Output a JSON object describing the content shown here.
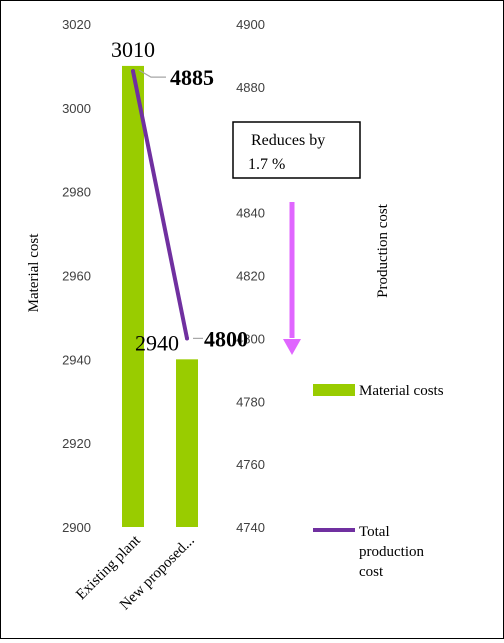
{
  "chart_data": {
    "type": "bar",
    "categories": [
      "Existing plant",
      "New proposed..."
    ],
    "series": [
      {
        "name": "Material costs",
        "type": "bar",
        "axis": "left",
        "values": [
          3010,
          2940
        ],
        "color": "#99cc00",
        "labels": [
          "3010",
          "2940"
        ]
      },
      {
        "name": "Total production cost",
        "type": "line",
        "axis": "right",
        "values": [
          4885,
          4800
        ],
        "color": "#7030a0",
        "labels": [
          "4885",
          "4800"
        ]
      }
    ],
    "ylabel": "Material cost",
    "y2label": "Production cost",
    "ylim": [
      2900,
      3020
    ],
    "y2lim": [
      4740,
      4900
    ],
    "yticks": [
      "2900",
      "2920",
      "2940",
      "2960",
      "2980",
      "3000",
      "3020"
    ],
    "y2ticks": [
      "4740",
      "4760",
      "4780",
      "4800",
      "4820",
      "4840",
      "4860",
      "4880",
      "4900"
    ],
    "legend": {
      "placement": "right",
      "items": [
        {
          "label": "Material costs"
        },
        {
          "label_lines": [
            "Total",
            "production",
            "cost"
          ]
        }
      ]
    },
    "annotation": {
      "lines": [
        "Reduces by",
        "1.7 %"
      ],
      "arrow_color": "#e066ff"
    },
    "grid": false
  }
}
